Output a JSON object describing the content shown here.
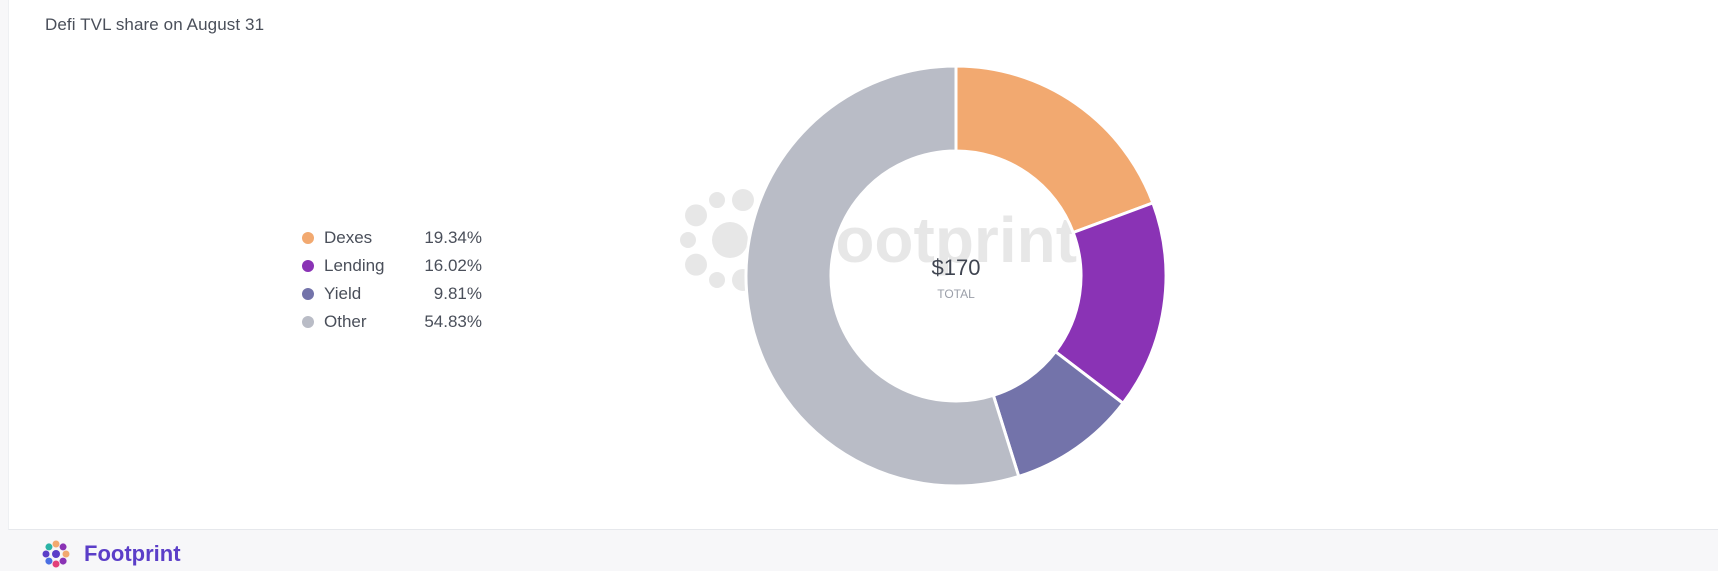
{
  "card": {
    "title": "Defi TVL share on August 31"
  },
  "chart_data": {
    "type": "pie",
    "donut": true,
    "center_value": "$170",
    "center_label": "TOTAL",
    "legend_position": "left",
    "slices": [
      {
        "label": "Dexes",
        "value": 19.34,
        "display": "19.34%",
        "color": "#f2a970"
      },
      {
        "label": "Lending",
        "value": 16.02,
        "display": "16.02%",
        "color": "#8a33b5"
      },
      {
        "label": "Yield",
        "value": 9.81,
        "display": "9.81%",
        "color": "#7373aa"
      },
      {
        "label": "Other",
        "value": 54.83,
        "display": "54.83%",
        "color": "#b9bcc6"
      }
    ]
  },
  "footer": {
    "brand": "Footprint",
    "brand_color": "#5b3ec8"
  },
  "watermark": {
    "text": "footprint"
  }
}
